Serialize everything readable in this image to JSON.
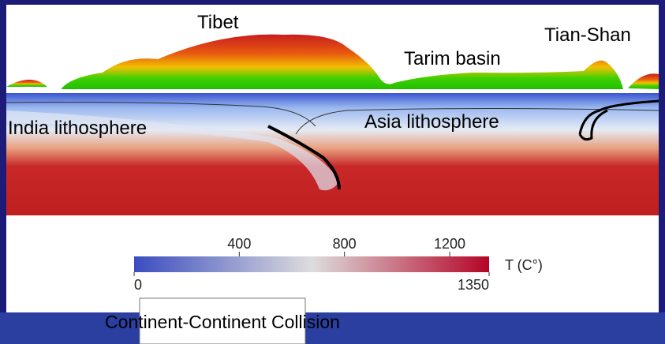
{
  "labels": {
    "tibet": "Tibet",
    "tarim": "Tarim basin",
    "tian_shan": "Tian-Shan",
    "india": "India lithosphere",
    "asia": "Asia lithosphere"
  },
  "colorbar": {
    "title": "T (C°)",
    "range": [
      0,
      1350
    ],
    "ticks": [
      400,
      800,
      1200
    ]
  },
  "caption": "Continent-Continent Collision"
}
